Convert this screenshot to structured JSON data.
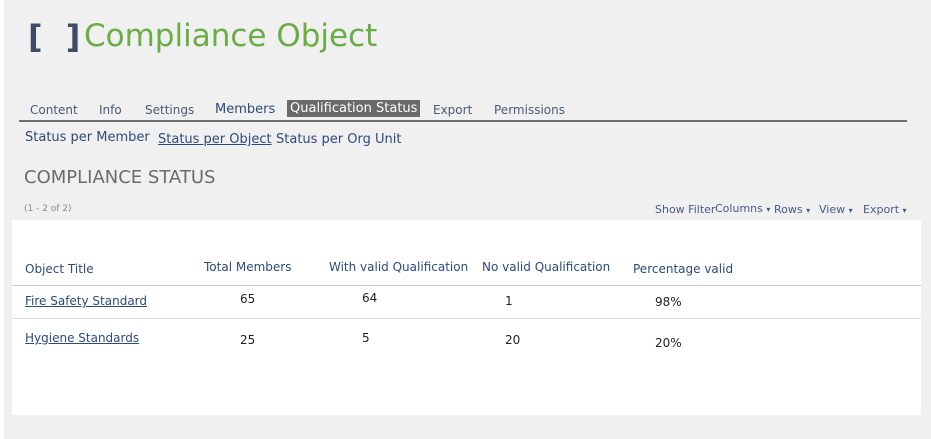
{
  "header": {
    "icon": "brackets-icon",
    "brackets": "[ ]",
    "title": "Compliance Object",
    "title_color": "#6aac45"
  },
  "tabs": [
    {
      "label": "Content"
    },
    {
      "label": "Info"
    },
    {
      "label": "Settings"
    },
    {
      "label": "Members"
    },
    {
      "label": "Qualification Status",
      "active": true
    },
    {
      "label": "Export"
    },
    {
      "label": "Permissions"
    }
  ],
  "subtabs": [
    {
      "label": "Status per Member"
    },
    {
      "label": "Status per Object",
      "active": true
    },
    {
      "label": "Status per Org Unit"
    }
  ],
  "section": {
    "heading": "COMPLIANCE STATUS",
    "count": "(1 - 2 of 2)"
  },
  "toolbar": {
    "show_filter": "Show Filter",
    "columns": "Columns",
    "rows": "Rows",
    "view": "View",
    "export": "Export",
    "caret": "▾"
  },
  "table": {
    "columns": [
      "Object Title",
      "Total Members",
      "With valid Qualification",
      "No valid Qualification",
      "Percentage valid"
    ],
    "rows": [
      [
        "Fire Safety Standard",
        "65",
        "64",
        "1",
        "98%"
      ],
      [
        "Hygiene Standards",
        "25",
        "5",
        "20",
        "20%"
      ]
    ]
  }
}
